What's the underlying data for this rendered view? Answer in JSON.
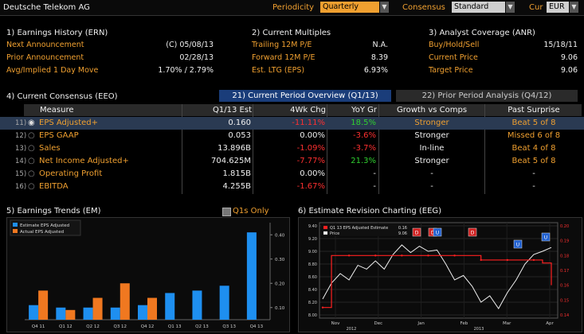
{
  "topbar": {
    "company": "Deutsche Telekom AG",
    "periodicity_label": "Periodicity",
    "periodicity_value": "Quarterly",
    "consensus_label": "Consensus",
    "consensus_value": "Standard",
    "cur_label": "Cur",
    "cur_value": "EUR"
  },
  "earnings_history": {
    "title": "1) Earnings History (ERN)",
    "rows": [
      {
        "label": "Next Announcement",
        "value": "(C)  05/08/13"
      },
      {
        "label": "Prior Announcement",
        "value": "02/28/13"
      },
      {
        "label": "Avg/Implied 1 Day Move",
        "value": "1.70% / 2.79%"
      }
    ]
  },
  "current_multiples": {
    "title": "2) Current Multiples",
    "rows": [
      {
        "label": "Trailing 12M P/E",
        "value": "N.A."
      },
      {
        "label": "Forward 12M P/E",
        "value": "8.39"
      },
      {
        "label": "Est. LTG (EPS)",
        "value": "6.93%"
      }
    ]
  },
  "analyst_coverage": {
    "title": "3) Analyst Coverage (ANR)",
    "rows": [
      {
        "label": "Buy/Hold/Sell",
        "value": "15/18/11"
      },
      {
        "label": "Current Price",
        "value": "9.06"
      },
      {
        "label": "Target Price",
        "value": "9.06"
      }
    ]
  },
  "current_consensus": {
    "title": "4) Current Consensus (EEO)",
    "tabs": [
      "21) Current Period Overview (Q1/13)",
      "22) Prior Period Analysis (Q4/12)"
    ],
    "headers": [
      "Measure",
      "Q1/13 Est",
      "4Wk Chg",
      "YoY Gr",
      "Growth vs Comps",
      "Past Surprise"
    ],
    "rows": [
      {
        "num": "11)",
        "measure": "EPS Adjusted+",
        "est": "0.160",
        "chg": "-11.11%",
        "yoy": "18.5%",
        "growth": "Stronger",
        "surprise": "Beat 5 of 8"
      },
      {
        "num": "12)",
        "measure": "EPS GAAP",
        "est": "0.053",
        "chg": "0.00%",
        "yoy": "-3.6%",
        "growth": "Stronger",
        "surprise": "Missed 6 of 8"
      },
      {
        "num": "13)",
        "measure": "Sales",
        "est": "13.896B",
        "chg": "-1.09%",
        "yoy": "-3.7%",
        "growth": "In-line",
        "surprise": "Beat 4 of 8"
      },
      {
        "num": "14)",
        "measure": "Net Income Adjusted+",
        "est": "704.625M",
        "chg": "-7.77%",
        "yoy": "21.3%",
        "growth": "Stronger",
        "surprise": "Beat 5 of 8"
      },
      {
        "num": "15)",
        "measure": "Operating Profit",
        "est": "1.815B",
        "chg": "0.00%",
        "yoy": "-",
        "growth": "-",
        "surprise": "-"
      },
      {
        "num": "16)",
        "measure": "EBITDA",
        "est": "4.255B",
        "chg": "-1.67%",
        "yoy": "-",
        "growth": "-",
        "surprise": "-"
      }
    ]
  },
  "earnings_trends": {
    "title": "5) Earnings Trends (EM)",
    "q1s_only": "Q1s Only"
  },
  "estimate_revision": {
    "title": "6) Estimate Revision Charting (EEG)"
  },
  "chart_data": [
    {
      "type": "bar",
      "categories": [
        "Q4 11",
        "Q1 12",
        "Q2 12",
        "Q3 12",
        "Q4 12",
        "Q1 13",
        "Q2 13",
        "Q3 13",
        "Q4 13"
      ],
      "series": [
        {
          "name": "Estimate EPS Adjusted",
          "color": "#1e8ff0",
          "values": [
            0.11,
            0.1,
            0.1,
            0.1,
            0.11,
            0.16,
            0.17,
            0.19,
            0.41
          ]
        },
        {
          "name": "Actual EPS Adjusted",
          "color": "#f07820",
          "values": [
            0.17,
            0.09,
            0.14,
            0.2,
            0.14,
            null,
            null,
            null,
            null
          ]
        }
      ],
      "ylim": [
        0.05,
        0.45
      ],
      "yticks": [
        "0.40",
        "0.30",
        "0.20",
        "0.10"
      ],
      "yticks_values": [
        0.4,
        0.3,
        0.2,
        0.1
      ],
      "legend": "top-left"
    },
    {
      "type": "line",
      "x_labels": [
        "Nov",
        "Dec",
        "Jan",
        "Feb",
        "Mar",
        "Apr"
      ],
      "years": [
        "2012",
        "2013"
      ],
      "series": [
        {
          "name": "Q1 13 EPS Adjusted Estimate",
          "last": "0.16",
          "color": "#ff2020",
          "values": [
            0.145,
            0.18,
            0.18,
            0.18,
            0.18,
            0.18,
            0.18,
            0.18,
            0.18,
            0.18,
            0.18,
            0.18,
            0.18,
            0.18,
            0.18,
            0.18,
            0.18,
            0.18,
            0.177,
            0.177,
            0.177,
            0.177,
            0.177,
            0.177,
            0.177,
            0.175,
            0.16
          ]
        },
        {
          "name": "Price",
          "last": "9.06",
          "color": "#f0f0f0",
          "values": [
            8.25,
            8.5,
            8.65,
            8.55,
            8.78,
            8.72,
            8.85,
            8.72,
            8.95,
            9.1,
            8.98,
            9.08,
            9.0,
            9.02,
            8.8,
            8.55,
            8.62,
            8.45,
            8.2,
            8.3,
            8.1,
            8.35,
            8.55,
            8.8,
            8.95,
            9.0,
            9.06
          ]
        }
      ],
      "left_ticks": [
        "9.40",
        "9.20",
        "9.00",
        "8.80",
        "8.60",
        "8.40",
        "8.20",
        "8.00"
      ],
      "right_ticks": [
        "0.20",
        "0.19",
        "0.18",
        "0.17",
        "0.16",
        "0.15",
        "0.14"
      ],
      "markers": [
        "D",
        "D",
        "D",
        "U",
        "U",
        "U"
      ]
    }
  ],
  "colors": {
    "accent": "#f0a030",
    "tab_active": "#1a3d7a",
    "up": "#30d030",
    "down": "#ff3030"
  }
}
